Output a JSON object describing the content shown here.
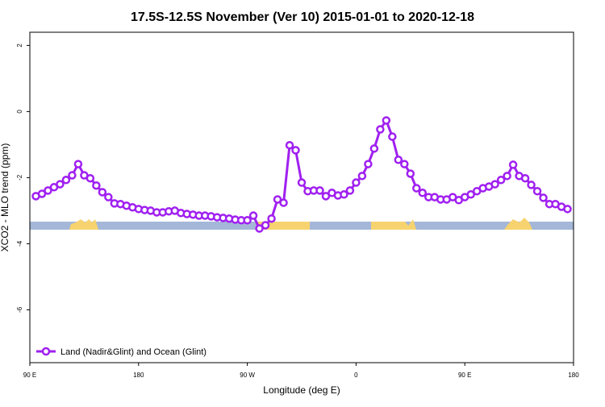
{
  "chart_data": {
    "type": "line",
    "title": "17.5S-12.5S November (Ver 10)   2015-01-01 to 2020-12-18",
    "x_label": "Longitude (deg E)",
    "y_label": "XCO2 - MLO trend (ppm)",
    "x": [
      95,
      100,
      105,
      110,
      115,
      120,
      125,
      130,
      135,
      140,
      145,
      150,
      155,
      160,
      165,
      170,
      175,
      180,
      185,
      190,
      195,
      200,
      205,
      210,
      215,
      220,
      225,
      230,
      235,
      240,
      245,
      250,
      255,
      260,
      265,
      270,
      275,
      280,
      285,
      290,
      295,
      300,
      305,
      310,
      315,
      320,
      325,
      330,
      335,
      340,
      345,
      350,
      355,
      360,
      365,
      370,
      375,
      380,
      385,
      390,
      395,
      400,
      405,
      410,
      415,
      420,
      425,
      430,
      435,
      440,
      445,
      450,
      455,
      460,
      465,
      470,
      475,
      480,
      485,
      490,
      495,
      500,
      505,
      510,
      515,
      520,
      525,
      530,
      535
    ],
    "series": [
      {
        "name": "Land (Nadir&Glint) and Ocean (Glint)",
        "color": "#a020f0",
        "values": [
          -2.56,
          -2.49,
          -2.39,
          -2.29,
          -2.2,
          -2.07,
          -1.93,
          -1.59,
          -1.93,
          -2.02,
          -2.24,
          -2.44,
          -2.59,
          -2.78,
          -2.8,
          -2.85,
          -2.9,
          -2.95,
          -2.98,
          -3.0,
          -3.05,
          -3.05,
          -3.02,
          -3.0,
          -3.07,
          -3.1,
          -3.12,
          -3.15,
          -3.15,
          -3.17,
          -3.2,
          -3.22,
          -3.24,
          -3.27,
          -3.29,
          -3.29,
          -3.15,
          -3.54,
          -3.44,
          -3.24,
          -2.66,
          -2.76,
          -1.02,
          -1.17,
          -2.15,
          -2.41,
          -2.39,
          -2.39,
          -2.56,
          -2.46,
          -2.54,
          -2.51,
          -2.39,
          -2.15,
          -1.95,
          -1.59,
          -1.12,
          -0.54,
          -0.27,
          -0.76,
          -1.46,
          -1.59,
          -1.88,
          -2.32,
          -2.46,
          -2.59,
          -2.59,
          -2.66,
          -2.66,
          -2.59,
          -2.68,
          -2.59,
          -2.51,
          -2.41,
          -2.32,
          -2.27,
          -2.2,
          -2.07,
          -1.95,
          -1.61,
          -1.95,
          -2.02,
          -2.22,
          -2.41,
          -2.61,
          -2.8,
          -2.8,
          -2.88,
          -2.95
        ]
      }
    ],
    "xlim": [
      90,
      540
    ],
    "xticks": [
      {
        "value": 90,
        "label": "90 E"
      },
      180,
      {
        "value": 270,
        "label": "90 W"
      },
      {
        "value": 360,
        "label": "0"
      },
      {
        "value": 450,
        "label": "90 E"
      },
      {
        "value": 540,
        "label": "180"
      }
    ],
    "ylim": [
      -7.6,
      2.4
    ],
    "yticks": [
      -6,
      -4,
      -2,
      0,
      2
    ],
    "legend": "bottom-left"
  }
}
